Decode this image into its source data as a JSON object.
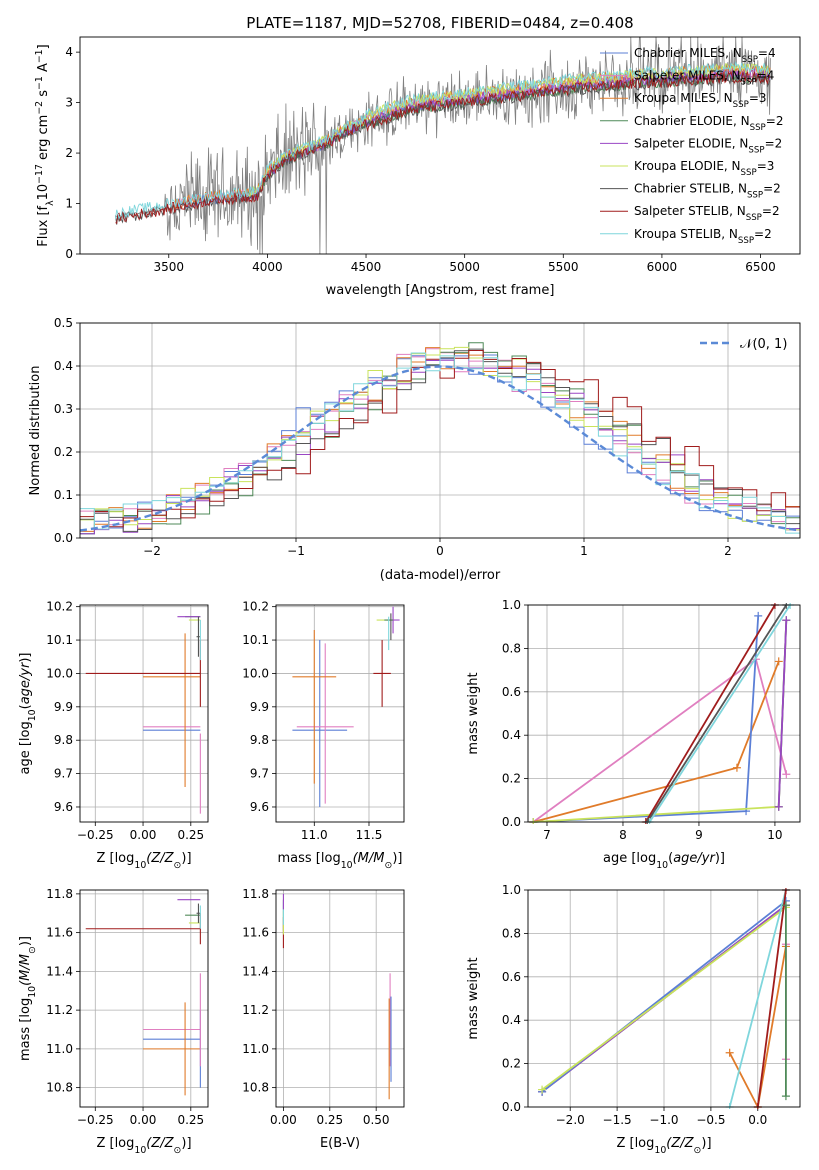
{
  "figure_title": "PLATE=1187, MJD=52708, FIBERID=0484, z=0.408",
  "colors": {
    "chabrier_miles": "#5b7fd6",
    "salpeter_miles": "#e07fc0",
    "kroupa_miles": "#e07b2a",
    "chabrier_elodie": "#4f8a58",
    "salpeter_elodie": "#9a46c4",
    "kroupa_elodie": "#c9e35c",
    "chabrier_stelib": "#555555",
    "salpeter_stelib": "#a01c1c",
    "kroupa_stelib": "#7fd6dc",
    "data_spectrum": "#808080",
    "normal_curve": "#5b8ad6"
  },
  "chart_data": [
    {
      "id": "spectrum",
      "type": "line",
      "title": "PLATE=1187, MJD=52708, FIBERID=0484, z=0.408",
      "xlabel": "wavelength [Angstrom, rest frame]",
      "ylabel_parts": [
        "Flux [f",
        "λ",
        "10",
        "−17",
        " erg cm",
        "−2",
        " s",
        "−1",
        " A",
        "−1",
        "]"
      ],
      "xlim": [
        3050,
        6700
      ],
      "ylim": [
        0,
        4.3
      ],
      "xticks": [
        "3500",
        "4000",
        "4500",
        "5000",
        "5500",
        "6000",
        "6500"
      ],
      "yticks": [
        "0",
        "1",
        "2",
        "3",
        "4"
      ],
      "grid": false,
      "legend_position": "top-right",
      "legend": [
        {
          "base": "Chabrier MILES, N",
          "sub": "SSP",
          "tail": "=4"
        },
        {
          "base": "Salpeter MILES, N",
          "sub": "SSP",
          "tail": "=4"
        },
        {
          "base": "Kroupa MILES, N",
          "sub": "SSP",
          "tail": "=3"
        },
        {
          "base": "Chabrier ELODIE, N",
          "sub": "SSP",
          "tail": "=2"
        },
        {
          "base": "Salpeter ELODIE, N",
          "sub": "SSP",
          "tail": "=2"
        },
        {
          "base": "Kroupa ELODIE, N",
          "sub": "SSP",
          "tail": "=3"
        },
        {
          "base": "Chabrier STELIB, N",
          "sub": "SSP",
          "tail": "=2"
        },
        {
          "base": "Salpeter STELIB, N",
          "sub": "SSP",
          "tail": "=2"
        },
        {
          "base": "Kroupa STELIB, N",
          "sub": "SSP",
          "tail": "=2"
        }
      ],
      "continuum": {
        "x": [
          3230,
          3400,
          3500,
          3600,
          3700,
          3800,
          3900,
          3950,
          4000,
          4100,
          4200,
          4300,
          4400,
          4500,
          4600,
          4700,
          4800,
          4900,
          5000,
          5100,
          5200,
          5300,
          5400,
          5500,
          5600,
          5700,
          5800,
          5900,
          6000,
          6100,
          6200,
          6300,
          6400,
          6500,
          6550
        ],
        "y": [
          0.72,
          0.85,
          0.92,
          1.0,
          1.08,
          1.12,
          1.15,
          1.18,
          1.6,
          1.9,
          2.05,
          2.2,
          2.45,
          2.6,
          2.75,
          2.88,
          2.95,
          3.0,
          3.05,
          3.1,
          3.15,
          3.2,
          3.25,
          3.3,
          3.35,
          3.38,
          3.4,
          3.45,
          3.45,
          3.5,
          3.5,
          3.55,
          3.55,
          3.55,
          3.5
        ]
      },
      "data_noisy_start": 3480,
      "model_end": 6550
    },
    {
      "id": "residuals",
      "type": "histogram",
      "xlabel": "(data-model)/error",
      "ylabel": "Normed distribution",
      "xlim": [
        -2.5,
        2.5
      ],
      "ylim": [
        0,
        0.5
      ],
      "xticks": [
        "−2",
        "−1",
        "0",
        "1",
        "2"
      ],
      "yticks": [
        "0.0",
        "0.1",
        "0.2",
        "0.3",
        "0.4",
        "0.5"
      ],
      "grid": true,
      "legend_position": "top-right",
      "normal_label": "𝒩(0, 1)",
      "bin_width": 0.1,
      "series_shifts": [
        0.0,
        0.05,
        0.15,
        0.25,
        0.2,
        0.1,
        0.3,
        0.4,
        0.08
      ]
    },
    {
      "id": "age-vs-z",
      "type": "errorbar",
      "xlabel_parts": [
        "Z [log",
        "10",
        "(Z/Z",
        "⊙",
        ")]"
      ],
      "ylabel_parts": [
        "age  [log",
        "10",
        "(",
        "age/yr",
        ")]"
      ],
      "xlim": [
        -0.33,
        0.34
      ],
      "ylim": [
        9.555,
        10.205
      ],
      "xticks": [
        "−0.25",
        "0.00",
        "0.25"
      ],
      "xtick_values": [
        -0.25,
        0.0,
        0.25
      ],
      "yticks": [
        "9.6",
        "9.7",
        "9.8",
        "9.9",
        "10.0",
        "10.1",
        "10.2"
      ],
      "ytick_values": [
        9.6,
        9.7,
        9.8,
        9.9,
        10.0,
        10.1,
        10.2
      ],
      "points": [
        {
          "s": "chabrier_miles",
          "x": 0.15,
          "xerr": 0.15,
          "y": 9.83,
          "yerr": 0.0
        },
        {
          "s": "salpeter_miles",
          "x": 0.15,
          "xerr": 0.15,
          "y": 9.84,
          "yerr": 0.0
        },
        {
          "s": "kroupa_miles",
          "x": 0.15,
          "xerr": 0.15,
          "y": 9.99,
          "yerr": 0.0
        },
        {
          "s": "kroupa_miles",
          "x": 0.22,
          "xerr": 0.0,
          "y": 9.89,
          "yerr": 0.23
        },
        {
          "s": "chabrier_elodie",
          "x": 0.26,
          "xerr": 0.04,
          "y": 10.17,
          "yerr": 0.0
        },
        {
          "s": "salpeter_elodie",
          "x": 0.24,
          "xerr": 0.06,
          "y": 10.17,
          "yerr": 0.0
        },
        {
          "s": "kroupa_elodie",
          "x": 0.27,
          "xerr": 0.03,
          "y": 10.16,
          "yerr": 0.0
        },
        {
          "s": "chabrier_stelib",
          "x": 0.29,
          "xerr": 0.01,
          "y": 10.11,
          "yerr": 0.06
        },
        {
          "s": "salpeter_stelib",
          "x": 0.0,
          "xerr": 0.3,
          "y": 10.0,
          "yerr": 0.0
        },
        {
          "s": "salpeter_stelib",
          "x": 0.3,
          "xerr": 0.0,
          "y": 10.0,
          "yerr": 0.1
        },
        {
          "s": "kroupa_stelib",
          "x": 0.3,
          "xerr": 0.0,
          "y": 10.1,
          "yerr": 0.06
        },
        {
          "s": "salpeter_miles",
          "x": 0.3,
          "xerr": 0.0,
          "y": 9.7,
          "yerr": 0.12
        }
      ]
    },
    {
      "id": "age-vs-mass",
      "type": "errorbar",
      "xlabel_parts": [
        "mass [log",
        "10",
        "(M/M",
        "⊙",
        ")]"
      ],
      "ylabel_parts": [],
      "xlim": [
        10.65,
        11.82
      ],
      "ylim": [
        9.555,
        10.205
      ],
      "xticks": [
        "11.0",
        "11.5"
      ],
      "xtick_values": [
        11.0,
        11.5
      ],
      "yticks": [
        "9.6",
        "9.7",
        "9.8",
        "9.9",
        "10.0",
        "10.1",
        "10.2"
      ],
      "ytick_values": [
        9.6,
        9.7,
        9.8,
        9.9,
        10.0,
        10.1,
        10.2
      ],
      "points": [
        {
          "s": "chabrier_miles",
          "x": 11.05,
          "xerr": 0.25,
          "y": 9.83,
          "yerr": 0.0
        },
        {
          "s": "chabrier_miles",
          "x": 11.05,
          "xerr": 0.0,
          "y": 9.85,
          "yerr": 0.25
        },
        {
          "s": "salpeter_miles",
          "x": 11.1,
          "xerr": 0.26,
          "y": 9.84,
          "yerr": 0.0
        },
        {
          "s": "salpeter_miles",
          "x": 11.1,
          "xerr": 0.0,
          "y": 9.85,
          "yerr": 0.24
        },
        {
          "s": "kroupa_miles",
          "x": 11.0,
          "xerr": 0.2,
          "y": 9.99,
          "yerr": 0.0
        },
        {
          "s": "kroupa_miles",
          "x": 11.0,
          "xerr": 0.0,
          "y": 9.9,
          "yerr": 0.23
        },
        {
          "s": "salpeter_stelib",
          "x": 11.62,
          "xerr": 0.08,
          "y": 10.0,
          "yerr": 0.0
        },
        {
          "s": "salpeter_stelib",
          "x": 11.62,
          "xerr": 0.0,
          "y": 10.0,
          "yerr": 0.1
        },
        {
          "s": "kroupa_elodie",
          "x": 11.65,
          "xerr": 0.08,
          "y": 10.16,
          "yerr": 0.0
        },
        {
          "s": "salpeter_elodie",
          "x": 11.72,
          "xerr": 0.06,
          "y": 10.16,
          "yerr": 0.04
        },
        {
          "s": "chabrier_elodie",
          "x": 11.68,
          "xerr": 0.04,
          "y": 10.16,
          "yerr": 0.0
        },
        {
          "s": "kroupa_stelib",
          "x": 11.68,
          "xerr": 0.0,
          "y": 10.12,
          "yerr": 0.05
        },
        {
          "s": "chabrier_stelib",
          "x": 11.7,
          "xerr": 0.0,
          "y": 10.14,
          "yerr": 0.04
        }
      ]
    },
    {
      "id": "weight-vs-age",
      "type": "line",
      "xlabel_parts": [
        "age  [log",
        "10",
        "(",
        "age/yr",
        ")]"
      ],
      "ylabel": "mass weight",
      "xlim": [
        6.75,
        10.33
      ],
      "ylim": [
        0.0,
        1.0
      ],
      "xticks": [
        "7",
        "8",
        "9",
        "10"
      ],
      "xtick_values": [
        7,
        8,
        9,
        10
      ],
      "yticks": [
        "0.0",
        "0.2",
        "0.4",
        "0.6",
        "0.8",
        "1.0"
      ],
      "ytick_values": [
        0.0,
        0.2,
        0.4,
        0.6,
        0.8,
        1.0
      ],
      "grid": true,
      "series": [
        {
          "s": "salpeter_miles",
          "x": [
            6.82,
            9.75,
            10.15
          ],
          "y": [
            0.0,
            0.75,
            0.22
          ]
        },
        {
          "s": "kroupa_miles",
          "x": [
            6.82,
            9.5,
            10.05
          ],
          "y": [
            0.0,
            0.25,
            0.74
          ]
        },
        {
          "s": "chabrier_miles",
          "x": [
            6.82,
            9.62,
            9.78
          ],
          "y": [
            0.0,
            0.05,
            0.95
          ]
        },
        {
          "s": "kroupa_elodie",
          "x": [
            6.82,
            10.05,
            10.15
          ],
          "y": [
            0.0,
            0.07,
            0.93
          ]
        },
        {
          "s": "salpeter_stelib",
          "x": [
            8.3,
            10.0
          ],
          "y": [
            0.0,
            1.0
          ]
        },
        {
          "s": "chabrier_stelib",
          "x": [
            8.32,
            10.15
          ],
          "y": [
            0.0,
            1.0
          ]
        },
        {
          "s": "kroupa_stelib",
          "x": [
            8.35,
            10.2
          ],
          "y": [
            0.0,
            1.0
          ]
        },
        {
          "s": "chabrier_elodie",
          "x": [
            10.05,
            10.15
          ],
          "y": [
            0.07,
            0.93
          ]
        },
        {
          "s": "salpeter_elodie",
          "x": [
            10.05,
            10.15
          ],
          "y": [
            0.07,
            0.93
          ]
        }
      ]
    },
    {
      "id": "mass-vs-z",
      "type": "errorbar",
      "xlabel_parts": [
        "Z [log",
        "10",
        "(Z/Z",
        "⊙",
        ")]"
      ],
      "ylabel_parts": [
        "mass [log",
        "10",
        "(M/M",
        "⊙",
        ")]"
      ],
      "xlim": [
        -0.33,
        0.34
      ],
      "ylim": [
        10.7,
        11.82
      ],
      "xticks": [
        "−0.25",
        "0.00",
        "0.25"
      ],
      "xtick_values": [
        -0.25,
        0.0,
        0.25
      ],
      "yticks": [
        "10.8",
        "11.0",
        "11.2",
        "11.4",
        "11.6",
        "11.8"
      ],
      "ytick_values": [
        10.8,
        11.0,
        11.2,
        11.4,
        11.6,
        11.8
      ],
      "points": [
        {
          "s": "chabrier_miles",
          "x": 0.15,
          "xerr": 0.15,
          "y": 11.05,
          "yerr": 0.0
        },
        {
          "s": "salpeter_miles",
          "x": 0.15,
          "xerr": 0.15,
          "y": 11.1,
          "yerr": 0.0
        },
        {
          "s": "kroupa_miles",
          "x": 0.15,
          "xerr": 0.15,
          "y": 11.0,
          "yerr": 0.0
        },
        {
          "s": "kroupa_miles",
          "x": 0.22,
          "xerr": 0.0,
          "y": 11.0,
          "yerr": 0.24
        },
        {
          "s": "salpeter_stelib",
          "x": 0.0,
          "xerr": 0.3,
          "y": 11.62,
          "yerr": 0.0
        },
        {
          "s": "salpeter_stelib",
          "x": 0.3,
          "xerr": 0.0,
          "y": 11.62,
          "yerr": 0.08
        },
        {
          "s": "salpeter_elodie",
          "x": 0.24,
          "xerr": 0.06,
          "y": 11.77,
          "yerr": 0.0
        },
        {
          "s": "chabrier_elodie",
          "x": 0.26,
          "xerr": 0.04,
          "y": 11.69,
          "yerr": 0.0
        },
        {
          "s": "kroupa_elodie",
          "x": 0.27,
          "xerr": 0.03,
          "y": 11.65,
          "yerr": 0.0
        },
        {
          "s": "chabrier_stelib",
          "x": 0.29,
          "xerr": 0.01,
          "y": 11.7,
          "yerr": 0.05
        },
        {
          "s": "kroupa_stelib",
          "x": 0.3,
          "xerr": 0.0,
          "y": 11.68,
          "yerr": 0.06
        },
        {
          "s": "chabrier_miles",
          "x": 0.3,
          "xerr": 0.0,
          "y": 11.0,
          "yerr": 0.2
        },
        {
          "s": "salpeter_miles",
          "x": 0.3,
          "xerr": 0.0,
          "y": 11.15,
          "yerr": 0.24
        }
      ]
    },
    {
      "id": "mass-vs-ebv",
      "type": "errorbar",
      "xlabel": "E(B-V)",
      "ylabel_parts": [],
      "xlim": [
        -0.04,
        0.65
      ],
      "ylim": [
        10.7,
        11.82
      ],
      "xticks": [
        "0.00",
        "0.25",
        "0.50"
      ],
      "xtick_values": [
        0.0,
        0.25,
        0.5
      ],
      "yticks": [
        "10.8",
        "11.0",
        "11.2",
        "11.4",
        "11.6",
        "11.8"
      ],
      "ytick_values": [
        10.8,
        11.0,
        11.2,
        11.4,
        11.6,
        11.8
      ],
      "points": [
        {
          "s": "chabrier_elodie",
          "x": 0.0,
          "xerr": 0.0,
          "y": 11.69,
          "yerr": 0.08
        },
        {
          "s": "salpeter_stelib",
          "x": 0.0,
          "xerr": 0.0,
          "y": 11.6,
          "yerr": 0.08
        },
        {
          "s": "kroupa_elodie",
          "x": 0.0,
          "xerr": 0.0,
          "y": 11.65,
          "yerr": 0.06
        },
        {
          "s": "kroupa_stelib",
          "x": 0.0,
          "xerr": 0.0,
          "y": 11.7,
          "yerr": 0.06
        },
        {
          "s": "salpeter_elodie",
          "x": 0.0,
          "xerr": 0.0,
          "y": 11.76,
          "yerr": 0.04
        },
        {
          "s": "salpeter_miles",
          "x": 0.575,
          "xerr": 0.0,
          "y": 11.15,
          "yerr": 0.24
        },
        {
          "s": "kroupa_miles",
          "x": 0.57,
          "xerr": 0.0,
          "y": 11.0,
          "yerr": 0.26
        },
        {
          "s": "chabrier_miles",
          "x": 0.58,
          "xerr": 0.0,
          "y": 11.05,
          "yerr": 0.22
        }
      ]
    },
    {
      "id": "weight-vs-z",
      "type": "line",
      "xlabel_parts": [
        "Z [log",
        "10",
        "(Z/Z",
        "⊙",
        ")]"
      ],
      "ylabel": "mass weight",
      "xlim": [
        -2.45,
        0.45
      ],
      "ylim": [
        0.0,
        1.0
      ],
      "xticks": [
        "−2.0",
        "−1.5",
        "−1.0",
        "−0.5",
        "0.0"
      ],
      "xtick_values": [
        -2.0,
        -1.5,
        -1.0,
        -0.5,
        0.0
      ],
      "yticks": [
        "0.0",
        "0.2",
        "0.4",
        "0.6",
        "0.8",
        "1.0"
      ],
      "ytick_values": [
        0.0,
        0.2,
        0.4,
        0.6,
        0.8,
        1.0
      ],
      "grid": true,
      "series": [
        {
          "s": "chabrier_stelib",
          "x": [
            -2.3,
            0.3
          ],
          "y": [
            0.07,
            0.93
          ]
        },
        {
          "s": "salpeter_elodie",
          "x": [
            -2.3,
            0.3
          ],
          "y": [
            0.07,
            0.93
          ]
        },
        {
          "s": "chabrier_miles",
          "x": [
            -2.3,
            0.3
          ],
          "y": [
            0.07,
            0.95
          ]
        },
        {
          "s": "kroupa_elodie",
          "x": [
            -2.3,
            0.3
          ],
          "y": [
            0.08,
            0.92
          ]
        },
        {
          "s": "kroupa_miles",
          "x": [
            -0.3,
            0.0,
            0.3
          ],
          "y": [
            0.25,
            0.0,
            0.74
          ]
        },
        {
          "s": "kroupa_stelib",
          "x": [
            -0.3,
            0.3
          ],
          "y": [
            0.0,
            1.0
          ]
        },
        {
          "s": "salpeter_stelib",
          "x": [
            0.0,
            0.3
          ],
          "y": [
            0.0,
            1.0
          ]
        },
        {
          "s": "salpeter_miles",
          "x": [
            0.3,
            0.3
          ],
          "y": [
            0.22,
            0.75
          ]
        },
        {
          "s": "chabrier_elodie",
          "x": [
            0.3,
            0.3
          ],
          "y": [
            0.05,
            0.93
          ]
        }
      ]
    }
  ]
}
